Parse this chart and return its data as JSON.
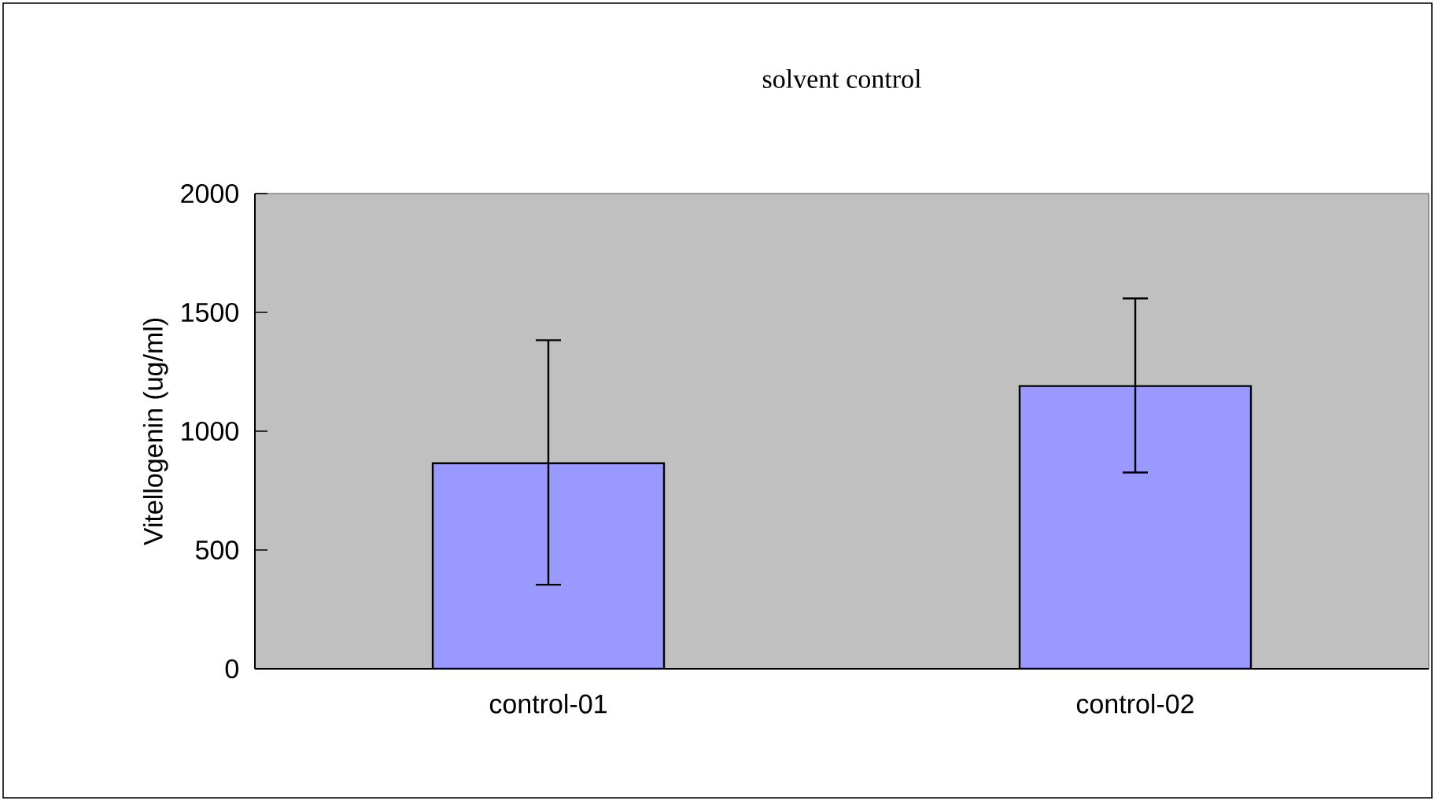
{
  "chart_data": {
    "type": "bar",
    "title": "solvent control",
    "ylabel": "Vitellogenin (ug/ml)",
    "categories": [
      "control-01",
      "control-02"
    ],
    "values": [
      865,
      1190
    ],
    "errors": [
      [
        354,
        1383
      ],
      [
        826,
        1559
      ]
    ],
    "color": "#9999ff",
    "ylim": [
      0,
      2000
    ],
    "yticks": [
      0,
      500,
      1000,
      1500,
      2000
    ]
  }
}
